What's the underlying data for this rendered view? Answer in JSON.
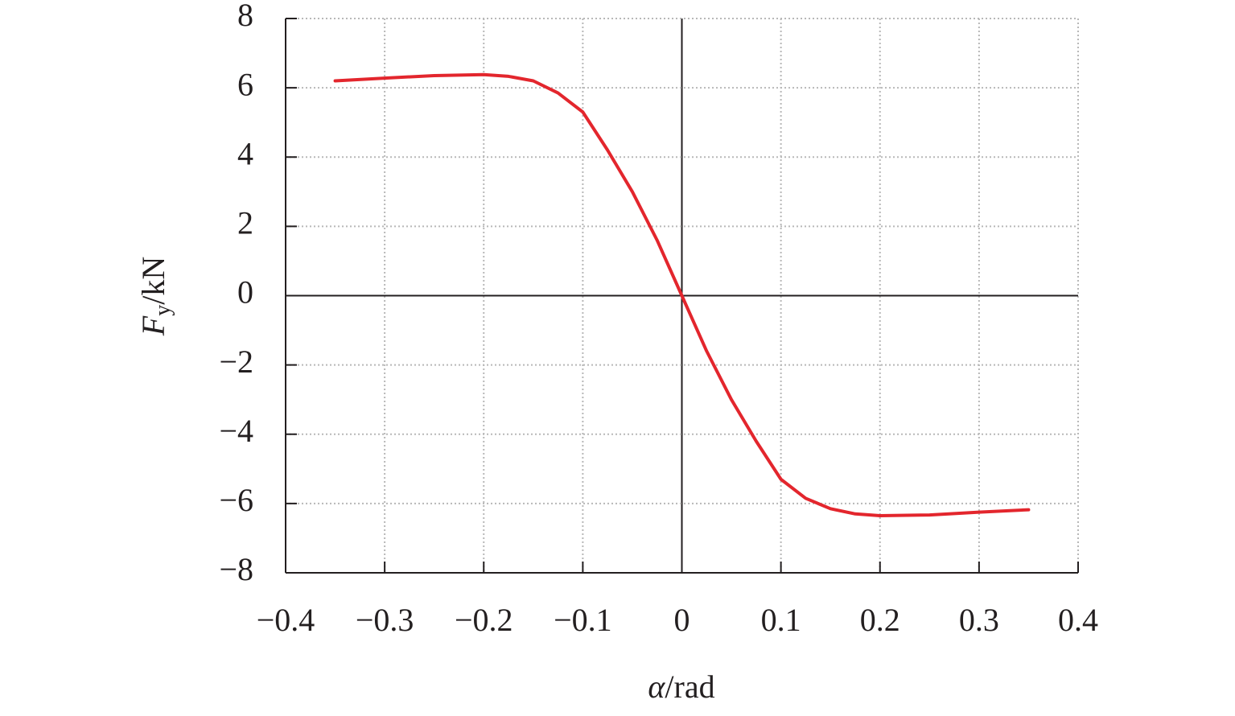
{
  "chart_data": {
    "type": "line",
    "x_label": {
      "symbol": "α",
      "unit": "/rad"
    },
    "y_label": {
      "symbol": "F",
      "subscript": "y",
      "unit": "/kN"
    },
    "x": [
      -0.35,
      -0.3,
      -0.25,
      -0.2,
      -0.175,
      -0.15,
      -0.125,
      -0.1,
      -0.075,
      -0.05,
      -0.025,
      0,
      0.025,
      0.05,
      0.075,
      0.1,
      0.125,
      0.15,
      0.175,
      0.2,
      0.25,
      0.3,
      0.35
    ],
    "values": [
      6.2,
      6.28,
      6.35,
      6.38,
      6.33,
      6.2,
      5.85,
      5.3,
      4.2,
      3.0,
      1.6,
      0,
      -1.6,
      -3.0,
      -4.2,
      -5.3,
      -5.85,
      -6.15,
      -6.3,
      -6.35,
      -6.33,
      -6.25,
      -6.18
    ],
    "color": "#e3262d",
    "xlim": [
      -0.4,
      0.4
    ],
    "xticks": [
      {
        "value": -0.4,
        "label": "−0.4"
      },
      {
        "value": -0.3,
        "label": "−0.3"
      },
      {
        "value": -0.2,
        "label": "−0.2"
      },
      {
        "value": -0.1,
        "label": "−0.1"
      },
      0,
      0.1,
      0.2,
      0.3,
      0.4
    ],
    "ylim": [
      -8,
      8
    ],
    "yticks": [
      {
        "value": -8,
        "label": "−8"
      },
      {
        "value": -6,
        "label": "−6"
      },
      {
        "value": -4,
        "label": "−4"
      },
      {
        "value": -2,
        "label": "−2"
      },
      0,
      2,
      4,
      6,
      8
    ],
    "grid": true
  }
}
